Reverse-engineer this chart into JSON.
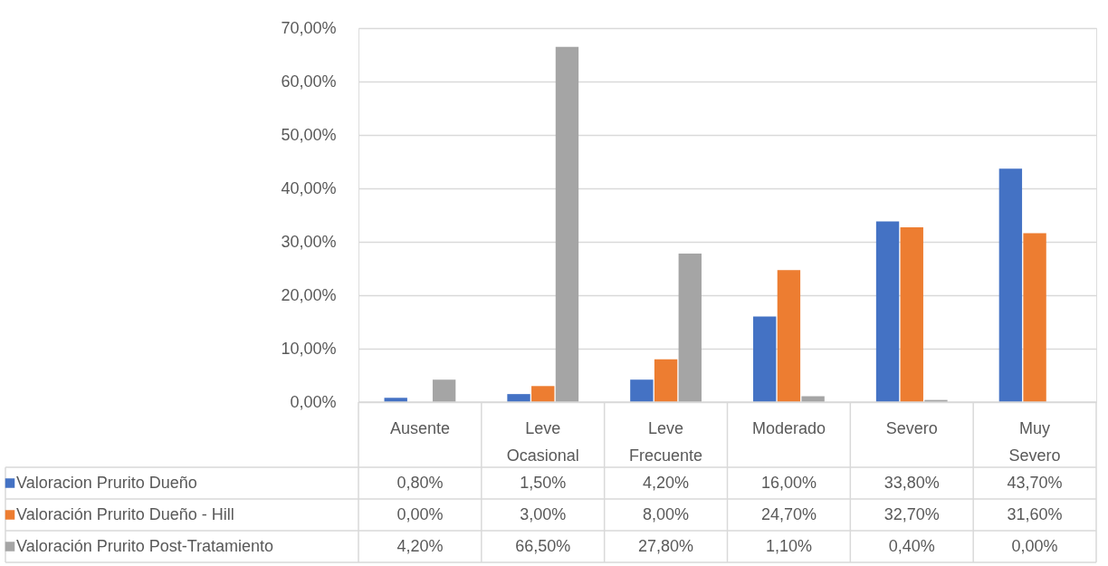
{
  "chart_data": {
    "type": "bar",
    "categories": [
      "Ausente",
      "Leve Ocasional",
      "Leve Frecuente",
      "Moderado",
      "Severo",
      "Muy Severo"
    ],
    "series": [
      {
        "name": "Valoracion Prurito Dueño",
        "color": "#4472c4",
        "values": [
          0.8,
          1.5,
          4.2,
          16.0,
          33.8,
          43.7
        ],
        "value_labels": [
          "0,80%",
          "1,50%",
          "4,20%",
          "16,00%",
          "33,80%",
          "43,70%"
        ]
      },
      {
        "name": "Valoración Prurito Dueño - Hill",
        "color": "#ed7d31",
        "values": [
          0.0,
          3.0,
          8.0,
          24.7,
          32.7,
          31.6
        ],
        "value_labels": [
          "0,00%",
          "3,00%",
          "8,00%",
          "24,70%",
          "32,70%",
          "31,60%"
        ]
      },
      {
        "name": "Valoración Prurito Post-Tratamiento",
        "color": "#a5a5a5",
        "values": [
          4.2,
          66.5,
          27.8,
          1.1,
          0.4,
          0.0
        ],
        "value_labels": [
          "4,20%",
          "66,50%",
          "27,80%",
          "1,10%",
          "0,40%",
          "0,00%"
        ]
      }
    ],
    "ylim": [
      0,
      70
    ],
    "yticks": [
      {
        "value": 0,
        "label": "0,00%"
      },
      {
        "value": 10,
        "label": "10,00%"
      },
      {
        "value": 20,
        "label": "20,00%"
      },
      {
        "value": 30,
        "label": "30,00%"
      },
      {
        "value": 40,
        "label": "40,00%"
      },
      {
        "value": 50,
        "label": "50,00%"
      },
      {
        "value": 60,
        "label": "60,00%"
      },
      {
        "value": 70,
        "label": "70,00%"
      }
    ],
    "grid": "y",
    "legend": "bottom"
  }
}
